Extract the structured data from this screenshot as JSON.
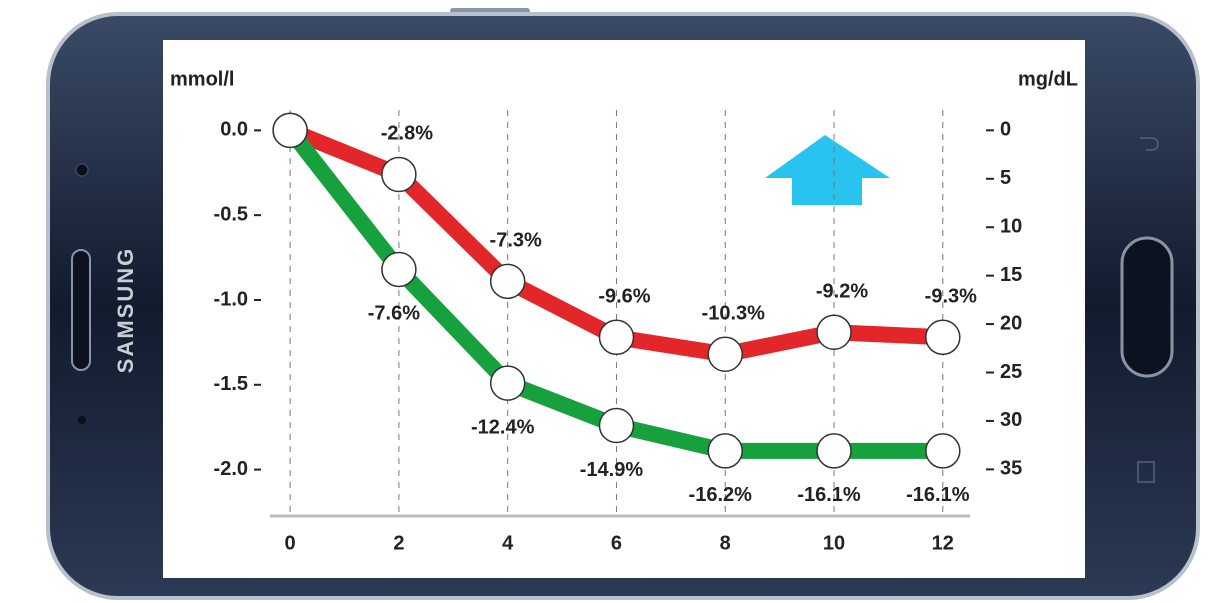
{
  "device": {
    "brand": "SAMSUNG"
  },
  "chart_data": {
    "type": "line",
    "ylabel": "mmol/l",
    "y2label": "mg/dL",
    "x": [
      0,
      2,
      4,
      6,
      8,
      10,
      12
    ],
    "xlim": [
      -0.37,
      12.5
    ],
    "xticks": [
      0,
      2,
      4,
      6,
      8,
      10,
      12
    ],
    "ylim": [
      -2.25,
      0.12
    ],
    "yticks": [
      {
        "value": 0,
        "label": "0.0"
      },
      {
        "value": -0.5,
        "label": "-0.5"
      },
      {
        "value": -1,
        "label": "-1.0"
      },
      {
        "value": -1.5,
        "label": "-1.5"
      },
      {
        "value": -2,
        "label": "-2.0"
      }
    ],
    "y2lim": [
      39.4,
      -2.1
    ],
    "y2ticks": [
      0,
      5,
      10,
      15,
      20,
      25,
      30,
      35
    ],
    "grid": true,
    "series": [
      {
        "color": "#e3262a",
        "values": [
          0,
          -0.26,
          -0.89,
          -1.22,
          -1.32,
          -1.19,
          -1.22
        ],
        "point_labels": [
          null,
          "-2.8%",
          "-7.3%",
          "-9.6%",
          "-10.3%",
          "-9.2%",
          "-9.3%"
        ]
      },
      {
        "color": "#17a03e",
        "values": [
          0,
          -0.82,
          -1.49,
          -1.74,
          -1.89,
          -1.89,
          -1.89
        ],
        "point_labels": [
          null,
          "-7.6%",
          "-12.4%",
          "-14.9%",
          "-16.2%",
          "-16.1%",
          "-16.1%"
        ]
      }
    ]
  }
}
